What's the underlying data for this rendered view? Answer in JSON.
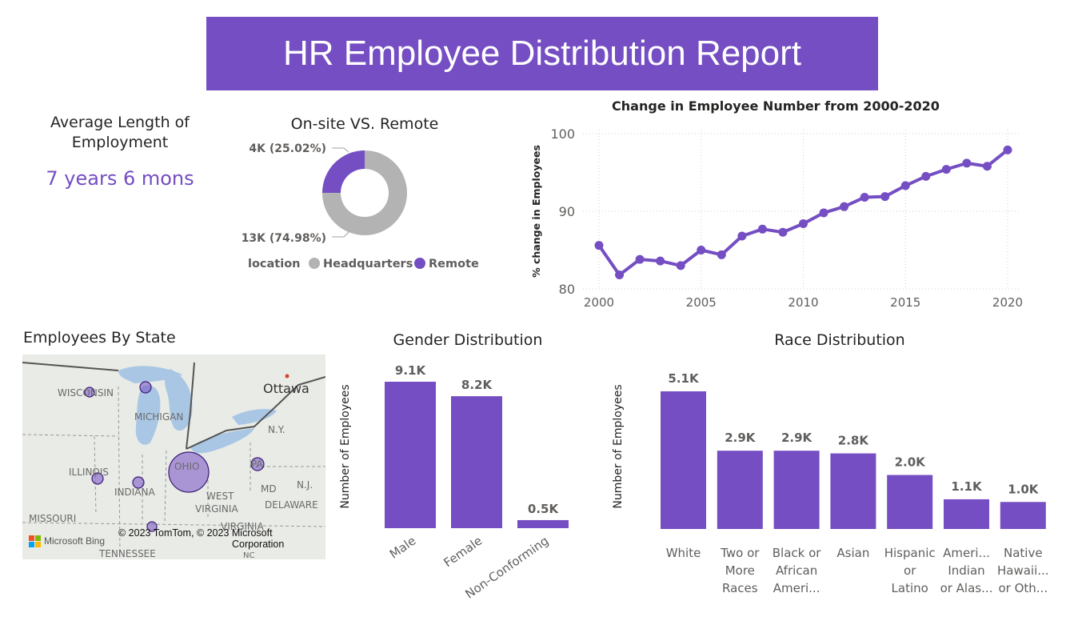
{
  "report_title": "HR Employee Distribution Report",
  "kpi": {
    "label": "Average Length of Employment",
    "value": "7 years 6 mons"
  },
  "colors": {
    "accent": "#744EC2",
    "grey": "#B3B3B3"
  },
  "map": {
    "title": "Employees By State",
    "labels": [
      "WISCONSIN",
      "MICHIGAN",
      "Ottawa",
      "N.Y.",
      "ILLINOIS",
      "INDIANA",
      "OHIO",
      "PA",
      "MD",
      "N.J.",
      "WEST",
      "VIRGINIA",
      "DELAWARE",
      "MISSOURI",
      "TENNESSEE",
      "VIRGINIA",
      "NC"
    ],
    "attribution": "© 2023 TomTom, © 2023 Microsoft",
    "attribution2": "Corporation",
    "bing": "Microsoft Bing"
  },
  "chart_data": [
    {
      "type": "pie",
      "title": "On-site VS. Remote",
      "legend_title": "location",
      "legend_position": "bottom",
      "slices": [
        {
          "name": "Headquarters",
          "value": 74.98,
          "label": "13K (74.98%)",
          "color": "#B3B3B3"
        },
        {
          "name": "Remote",
          "value": 25.02,
          "label": "4K (25.02%)",
          "color": "#744EC2"
        }
      ]
    },
    {
      "type": "line",
      "title": "Change in Employee Number from 2000-2020",
      "xlabel": "",
      "ylabel": "% change in Employees",
      "x": [
        2000,
        2001,
        2002,
        2003,
        2004,
        2005,
        2006,
        2007,
        2008,
        2009,
        2010,
        2011,
        2012,
        2013,
        2014,
        2015,
        2016,
        2017,
        2018,
        2019,
        2020
      ],
      "y": [
        85.6,
        81.8,
        83.8,
        83.6,
        83.0,
        85.0,
        84.4,
        86.8,
        87.7,
        87.3,
        88.4,
        89.8,
        90.6,
        91.8,
        91.9,
        93.3,
        94.5,
        95.4,
        96.2,
        95.8,
        97.9
      ],
      "xticks": [
        2000,
        2005,
        2010,
        2015,
        2020
      ],
      "yticks": [
        80,
        90,
        100
      ],
      "xlim": [
        2000,
        2020
      ],
      "ylim": [
        80,
        100
      ],
      "grid": true,
      "color": "#744EC2"
    },
    {
      "type": "bar",
      "title": "Gender Distribution",
      "ylabel": "Number of Employees",
      "categories": [
        "Male",
        "Female",
        "Non-Conforming"
      ],
      "values": [
        9100,
        8200,
        500
      ],
      "labels": [
        "9.1K",
        "8.2K",
        "0.5K"
      ],
      "color": "#744EC2"
    },
    {
      "type": "bar",
      "title": "Race Distribution",
      "ylabel": "Number of Employees",
      "categories": [
        [
          "White"
        ],
        [
          "Two or",
          "More",
          "Races"
        ],
        [
          "Black or",
          "African",
          "Ameri..."
        ],
        [
          "Asian"
        ],
        [
          "Hispanic",
          "or",
          "Latino"
        ],
        [
          "Ameri...",
          "Indian",
          "or Alas..."
        ],
        [
          "Native",
          "Hawaii...",
          "or Oth..."
        ]
      ],
      "values": [
        5100,
        2900,
        2900,
        2800,
        2000,
        1100,
        1000
      ],
      "labels": [
        "5.1K",
        "2.9K",
        "2.9K",
        "2.8K",
        "2.0K",
        "1.1K",
        "1.0K"
      ],
      "color": "#744EC2"
    }
  ]
}
